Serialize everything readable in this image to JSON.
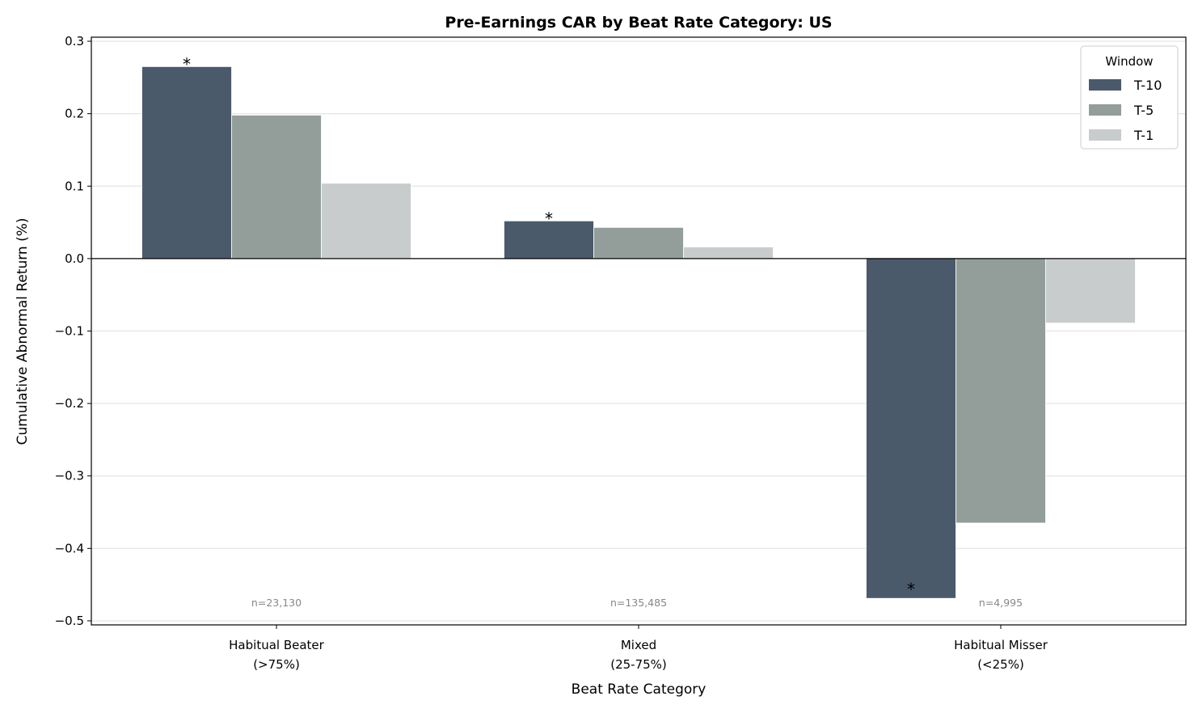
{
  "chart_data": {
    "type": "bar",
    "title": "Pre-Earnings CAR by Beat Rate Category: US",
    "xlabel": "Beat Rate Category",
    "ylabel": "Cumulative Abnormal Return (%)",
    "categories": [
      [
        "Habitual Beater",
        "(>75%)"
      ],
      [
        "Mixed",
        "(25-75%)"
      ],
      [
        "Habitual Misser",
        "(<25%)"
      ]
    ],
    "sample_sizes": [
      "n=23,130",
      "n=135,485",
      "n=4,995"
    ],
    "series": [
      {
        "name": "T-10",
        "color": "#4a5a6a",
        "values": [
          0.265,
          0.052,
          -0.469
        ],
        "significant": [
          true,
          true,
          true
        ]
      },
      {
        "name": "T-5",
        "color": "#939e9b",
        "values": [
          0.198,
          0.043,
          -0.365
        ],
        "significant": [
          false,
          false,
          false
        ]
      },
      {
        "name": "T-1",
        "color": "#c8cccd",
        "values": [
          0.104,
          0.016,
          -0.089
        ],
        "significant": [
          false,
          false,
          false
        ]
      }
    ],
    "significance_marker": "*",
    "ylim": [
      -0.5056,
      0.3056
    ],
    "yticks": [
      0.3,
      0.2,
      0.1,
      0.0,
      -0.1,
      -0.2,
      -0.3,
      -0.4,
      -0.5
    ],
    "ytick_labels": [
      "0.3",
      "0.2",
      "0.1",
      "0.0",
      "−0.1",
      "−0.2",
      "−0.3",
      "−0.4",
      "−0.5"
    ],
    "grid": "horizontal",
    "legend": {
      "title": "Window",
      "placement": "top-right"
    }
  }
}
